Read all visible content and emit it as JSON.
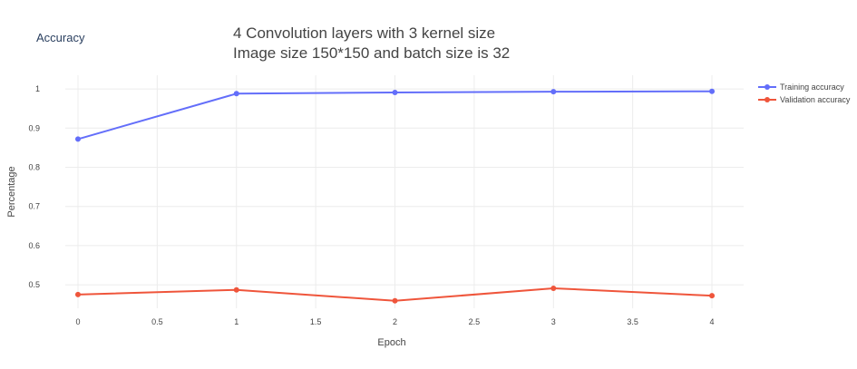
{
  "header": {
    "accuracy_label": "Accuracy",
    "title_line1": "4 Convolution layers with 3 kernel size",
    "title_line2": "Image size 150*150 and batch size is 32"
  },
  "colors": {
    "training": "#636efa",
    "validation": "#ef553b",
    "grid": "#ececec",
    "text": "#444444"
  },
  "chart_data": {
    "type": "line",
    "title": "4 Convolution layers with 3 kernel size Image size 150*150 and batch size is 32",
    "xlabel": "Epoch",
    "ylabel": "Percentage",
    "x": [
      0,
      1,
      2,
      3,
      4
    ],
    "xlim": [
      -0.08,
      4.2
    ],
    "ylim": [
      0.44,
      1.035
    ],
    "xticks": [
      0,
      0.5,
      1,
      1.5,
      2,
      2.5,
      3,
      3.5,
      4
    ],
    "xtick_labels": [
      "0",
      "0.5",
      "1",
      "1.5",
      "2",
      "2.5",
      "3",
      "3.5",
      "4"
    ],
    "yticks": [
      0.5,
      0.6,
      0.7,
      0.8,
      0.9,
      1.0
    ],
    "ytick_labels": [
      "0.5",
      "0.6",
      "0.7",
      "0.8",
      "0.9",
      "1"
    ],
    "grid": true,
    "legend_position": "top-right",
    "series": [
      {
        "name": "Training accuracy",
        "color": "#636efa",
        "values": [
          0.872,
          0.988,
          0.991,
          0.993,
          0.994
        ]
      },
      {
        "name": "Validation accuracy",
        "color": "#ef553b",
        "values": [
          0.475,
          0.487,
          0.459,
          0.491,
          0.472
        ]
      }
    ]
  }
}
